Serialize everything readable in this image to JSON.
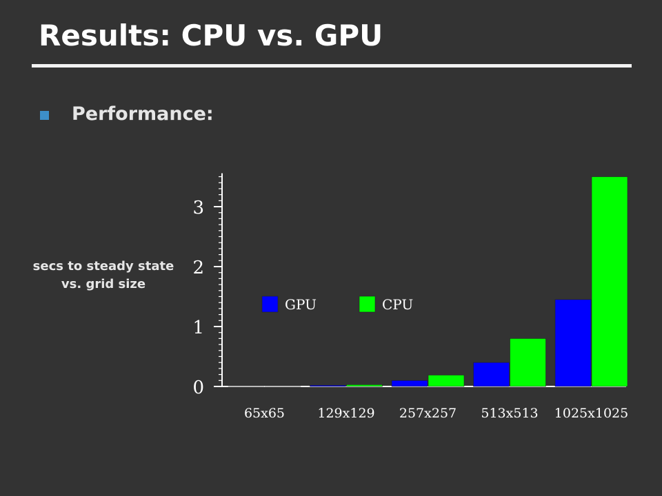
{
  "slide": {
    "title": "Results: CPU vs. GPU",
    "bullet": "Performance:",
    "note_line1": "secs to steady state",
    "note_line2": "vs. grid size",
    "bullet_color": "#3d8fc9",
    "background": "#333333"
  },
  "chart_data": {
    "type": "bar",
    "categories": [
      "65x65",
      "129x129",
      "257x257",
      "513x513",
      "1025x1025"
    ],
    "series": [
      {
        "name": "GPU",
        "color": "#0000ff",
        "values": [
          0.0,
          0.02,
          0.1,
          0.4,
          1.45
        ]
      },
      {
        "name": "CPU",
        "color": "#00ff00",
        "values": [
          0.0,
          0.03,
          0.19,
          0.8,
          3.5
        ]
      }
    ],
    "yticks": [
      0,
      1,
      2,
      3
    ],
    "ylim": [
      0,
      3.5
    ],
    "legend": "inside, upper-left",
    "grid": false,
    "title": "",
    "xlabel": "",
    "ylabel": ""
  }
}
